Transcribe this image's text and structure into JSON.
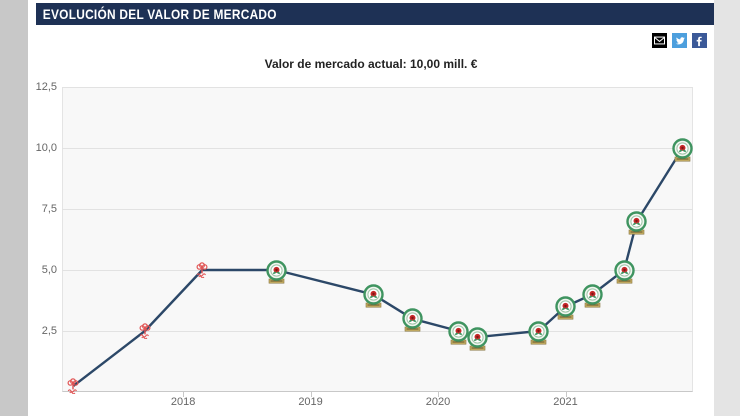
{
  "header": {
    "title": "EVOLUCIÓN DEL VALOR DE MERCADO"
  },
  "subtitle": "Valor de mercado actual: 10,00 mill. €",
  "share": {
    "buttons": [
      {
        "name": "email",
        "icon": "email-icon",
        "bg": "#000000"
      },
      {
        "name": "twitter",
        "icon": "twitter-icon",
        "bg": "#4d9fdd"
      },
      {
        "name": "facebook",
        "icon": "facebook-icon",
        "bg": "#3b5998",
        "glyph": "f"
      }
    ]
  },
  "colors": {
    "header_bg": "#1e3155",
    "line": "#2c4868",
    "plot_bg": "#f8f8f8",
    "gridline": "#e2e2e2",
    "axis": "#c8c8c8",
    "axis_label": "#666666",
    "forest_red": "#e15555",
    "rovers_green": "#3f9460",
    "rose_red": "#c62828",
    "banner_gold": "#c7ae63"
  },
  "chart_data": {
    "type": "line",
    "title": "Valor de mercado actual: 10,00 mill. €",
    "xlabel": "",
    "ylabel": "",
    "unit": "mill. €",
    "xlim": [
      2017.05,
      2022.0
    ],
    "ylim": [
      0,
      12.5
    ],
    "grid": true,
    "legend": false,
    "y_ticks": [
      {
        "value": 12.5,
        "label": "12,5"
      },
      {
        "value": 10.0,
        "label": "10,0"
      },
      {
        "value": 7.5,
        "label": "7,5"
      },
      {
        "value": 5.0,
        "label": "5,0"
      },
      {
        "value": 2.5,
        "label": "2,5"
      }
    ],
    "x_ticks": [
      {
        "value": 2018,
        "label": "2018"
      },
      {
        "value": 2019,
        "label": "2019"
      },
      {
        "value": 2020,
        "label": "2020"
      },
      {
        "value": 2021,
        "label": "2021"
      }
    ],
    "series": [
      {
        "name": "Valor de mercado",
        "line_color": "#2c4868",
        "points": [
          {
            "x": 2017.14,
            "y": 0.25,
            "club": "nottingham-forest"
          },
          {
            "x": 2017.7,
            "y": 2.5,
            "club": "nottingham-forest"
          },
          {
            "x": 2018.15,
            "y": 5.0,
            "club": "nottingham-forest"
          },
          {
            "x": 2018.73,
            "y": 5.0,
            "club": "blackburn-rovers"
          },
          {
            "x": 2019.49,
            "y": 4.0,
            "club": "blackburn-rovers"
          },
          {
            "x": 2019.8,
            "y": 3.0,
            "club": "blackburn-rovers"
          },
          {
            "x": 2020.16,
            "y": 2.5,
            "club": "blackburn-rovers"
          },
          {
            "x": 2020.31,
            "y": 2.25,
            "club": "blackburn-rovers"
          },
          {
            "x": 2020.79,
            "y": 2.5,
            "club": "blackburn-rovers"
          },
          {
            "x": 2021.0,
            "y": 3.5,
            "club": "blackburn-rovers"
          },
          {
            "x": 2021.21,
            "y": 4.0,
            "club": "blackburn-rovers"
          },
          {
            "x": 2021.46,
            "y": 5.0,
            "club": "blackburn-rovers"
          },
          {
            "x": 2021.56,
            "y": 7.0,
            "club": "blackburn-rovers"
          },
          {
            "x": 2021.92,
            "y": 10.0,
            "club": "blackburn-rovers"
          }
        ]
      }
    ]
  }
}
